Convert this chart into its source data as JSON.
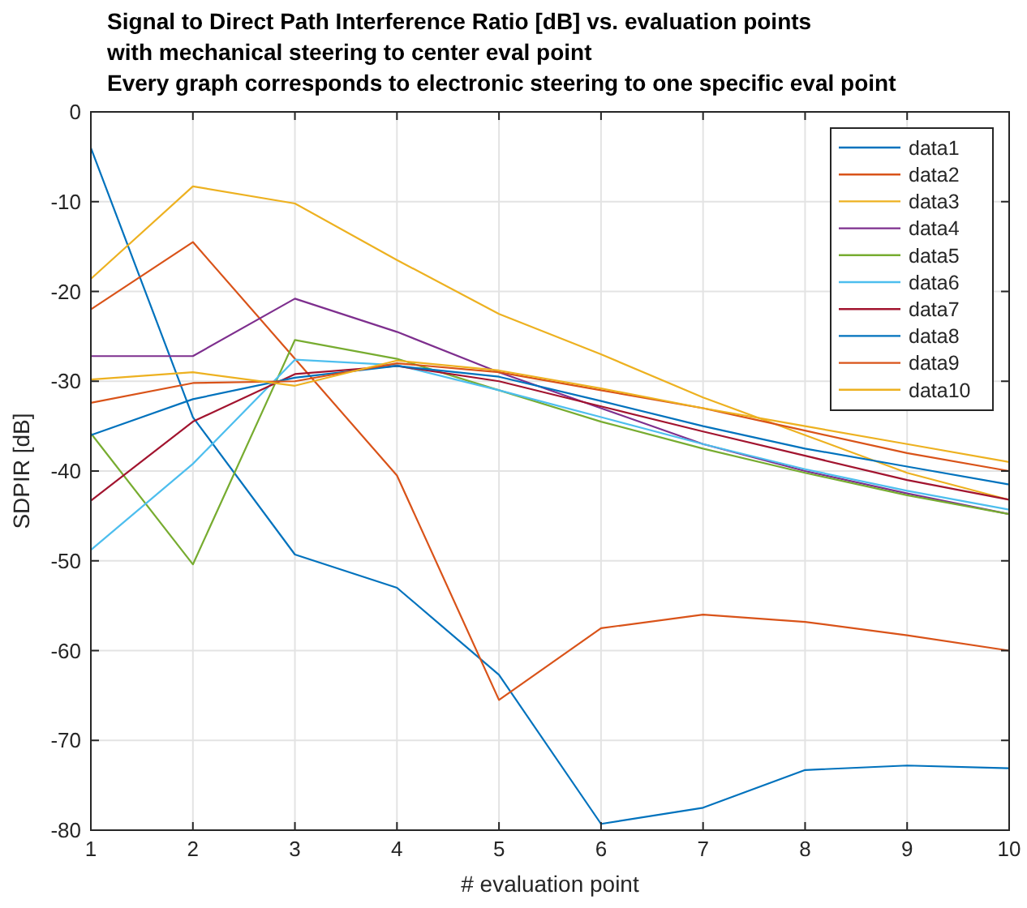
{
  "chart_data": {
    "type": "line",
    "title": "Signal to Direct Path Interference Ratio [dB] vs. evaluation points\nwith mechanical steering to center eval point\nEvery graph corresponds to electronic steering to one specific eval point",
    "xlabel": "# evaluation point",
    "ylabel": "SDPIR [dB]",
    "x": [
      1,
      2,
      3,
      4,
      5,
      6,
      7,
      8,
      9,
      10
    ],
    "xlim": [
      1,
      10
    ],
    "xticks": [
      1,
      2,
      3,
      4,
      5,
      6,
      7,
      8,
      9,
      10
    ],
    "ylim": [
      -80,
      0
    ],
    "yticks": [
      -80,
      -70,
      -60,
      -50,
      -40,
      -30,
      -20,
      -10,
      0
    ],
    "grid": true,
    "legend": "top right",
    "series": [
      {
        "name": "data1",
        "color": "#0072bd",
        "values": [
          -4,
          -34,
          -49.3,
          -53,
          -62.7,
          -79.3,
          -77.5,
          -73.3,
          -72.8,
          -73.1
        ]
      },
      {
        "name": "data2",
        "color": "#d95319",
        "values": [
          -22,
          -14.5,
          -27.5,
          -40.5,
          -65.5,
          -57.5,
          -56,
          -56.8,
          -58.3,
          -60
        ]
      },
      {
        "name": "data3",
        "color": "#edb120",
        "values": [
          -18.6,
          -8.3,
          -10.2,
          -16.5,
          -22.5,
          -27,
          -31.8,
          -36,
          -40.2,
          -43.2
        ]
      },
      {
        "name": "data4",
        "color": "#7e2f8e",
        "values": [
          -27.2,
          -27.2,
          -20.8,
          -24.5,
          -29,
          -33,
          -37,
          -40,
          -42.5,
          -44.8
        ]
      },
      {
        "name": "data5",
        "color": "#77ac30",
        "values": [
          -35.8,
          -50.4,
          -25.4,
          -27.5,
          -31,
          -34.5,
          -37.5,
          -40.2,
          -42.7,
          -44.8
        ]
      },
      {
        "name": "data6",
        "color": "#4dbeee",
        "values": [
          -48.8,
          -39.2,
          -27.6,
          -28.2,
          -31,
          -34,
          -37,
          -39.8,
          -42.2,
          -44.3
        ]
      },
      {
        "name": "data7",
        "color": "#a2142f",
        "values": [
          -43.3,
          -34.5,
          -29.2,
          -28.3,
          -30,
          -32.8,
          -35.6,
          -38.3,
          -41,
          -43.2
        ]
      },
      {
        "name": "data8",
        "color": "#0072bd",
        "values": [
          -36,
          -32,
          -29.6,
          -28.3,
          -29.5,
          -32.2,
          -35,
          -37.5,
          -39.5,
          -41.5
        ]
      },
      {
        "name": "data9",
        "color": "#d95319",
        "values": [
          -32.4,
          -30.2,
          -30,
          -28,
          -29,
          -31,
          -33,
          -35.5,
          -38,
          -40
        ]
      },
      {
        "name": "data10",
        "color": "#edb120",
        "values": [
          -29.8,
          -29,
          -30.5,
          -27.7,
          -28.8,
          -30.8,
          -33,
          -35,
          -37,
          -39
        ]
      }
    ]
  }
}
